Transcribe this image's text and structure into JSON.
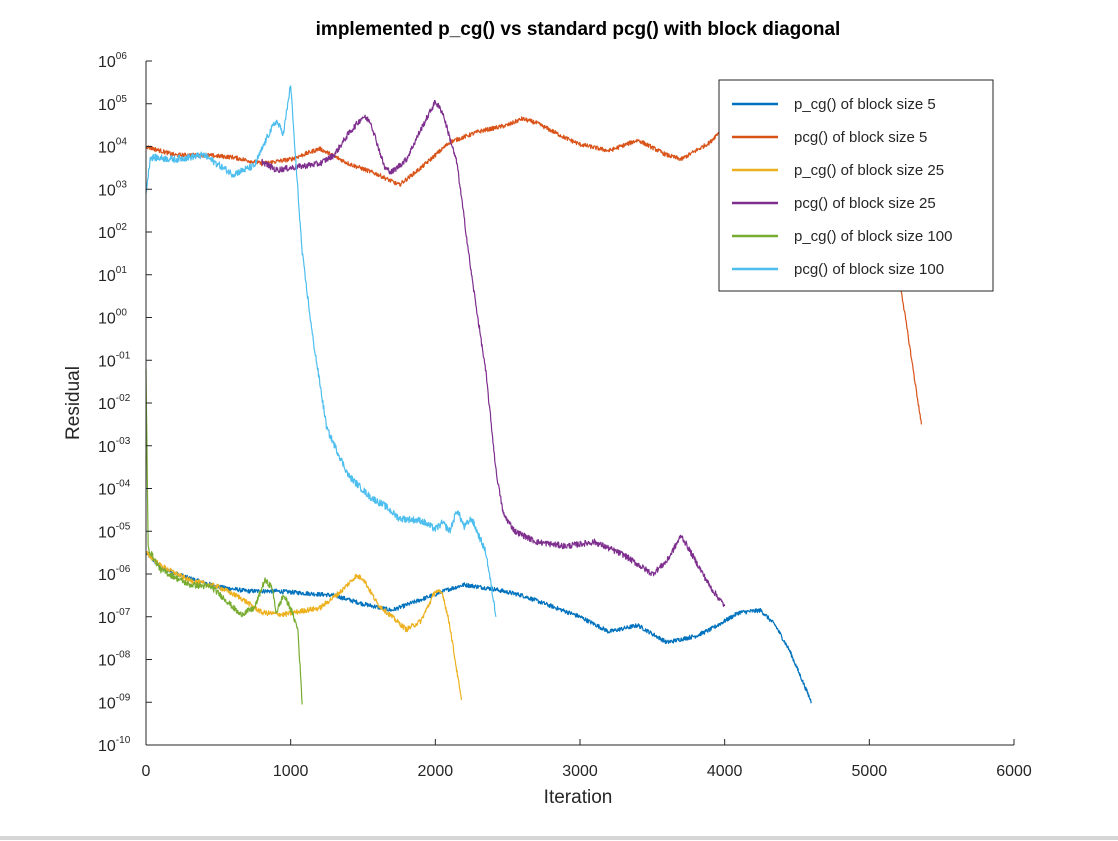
{
  "chart_data": {
    "type": "line",
    "yscale": "log",
    "title": "implemented p_cg() vs standard pcg() with block diagonal",
    "xlabel": "Iteration",
    "ylabel": "Residual",
    "xlim": [
      0,
      6000
    ],
    "ylim_exp": [
      -10,
      6
    ],
    "xticks": [
      "0",
      "1000",
      "2000",
      "3000",
      "4000",
      "5000",
      "6000"
    ],
    "yticks": [
      {
        "base": "10",
        "exp": "-10"
      },
      {
        "base": "10",
        "exp": "-09"
      },
      {
        "base": "10",
        "exp": "-08"
      },
      {
        "base": "10",
        "exp": "-07"
      },
      {
        "base": "10",
        "exp": "-06"
      },
      {
        "base": "10",
        "exp": "-05"
      },
      {
        "base": "10",
        "exp": "-04"
      },
      {
        "base": "10",
        "exp": "-03"
      },
      {
        "base": "10",
        "exp": "-02"
      },
      {
        "base": "10",
        "exp": "-01"
      },
      {
        "base": "10",
        "exp": "00"
      },
      {
        "base": "10",
        "exp": "01"
      },
      {
        "base": "10",
        "exp": "02"
      },
      {
        "base": "10",
        "exp": "03"
      },
      {
        "base": "10",
        "exp": "04"
      },
      {
        "base": "10",
        "exp": "05"
      },
      {
        "base": "10",
        "exp": "06"
      }
    ],
    "legend_position": "top-right",
    "series": [
      {
        "name": "p_cg() of block size 5",
        "color": "#0072BD",
        "noise": 0.05,
        "points": [
          [
            0,
            -5.5
          ],
          [
            100,
            -5.85
          ],
          [
            300,
            -6.1
          ],
          [
            500,
            -6.3
          ],
          [
            700,
            -6.4
          ],
          [
            900,
            -6.4
          ],
          [
            1100,
            -6.45
          ],
          [
            1300,
            -6.5
          ],
          [
            1500,
            -6.7
          ],
          [
            1700,
            -6.85
          ],
          [
            1900,
            -6.6
          ],
          [
            2100,
            -6.35
          ],
          [
            2200,
            -6.25
          ],
          [
            2400,
            -6.35
          ],
          [
            2600,
            -6.5
          ],
          [
            2800,
            -6.75
          ],
          [
            3000,
            -7.0
          ],
          [
            3200,
            -7.35
          ],
          [
            3400,
            -7.2
          ],
          [
            3600,
            -7.6
          ],
          [
            3800,
            -7.45
          ],
          [
            3900,
            -7.3
          ],
          [
            4100,
            -6.9
          ],
          [
            4250,
            -6.85
          ],
          [
            4350,
            -7.2
          ],
          [
            4450,
            -7.8
          ],
          [
            4600,
            -9.0
          ]
        ]
      },
      {
        "name": "pcg() of block size 5",
        "color": "#D95319",
        "noise": 0.05,
        "points": [
          [
            0,
            4.0
          ],
          [
            200,
            3.8
          ],
          [
            400,
            3.8
          ],
          [
            600,
            3.75
          ],
          [
            800,
            3.6
          ],
          [
            1000,
            3.7
          ],
          [
            1200,
            3.95
          ],
          [
            1400,
            3.6
          ],
          [
            1600,
            3.35
          ],
          [
            1750,
            3.1
          ],
          [
            1900,
            3.5
          ],
          [
            2100,
            4.1
          ],
          [
            2300,
            4.35
          ],
          [
            2500,
            4.5
          ],
          [
            2600,
            4.65
          ],
          [
            2700,
            4.55
          ],
          [
            2900,
            4.2
          ],
          [
            3000,
            4.05
          ],
          [
            3200,
            3.9
          ],
          [
            3400,
            4.15
          ],
          [
            3600,
            3.8
          ],
          [
            3700,
            3.7
          ],
          [
            3900,
            4.1
          ],
          [
            4000,
            4.5
          ],
          [
            4200,
            4.85
          ],
          [
            4400,
            4.7
          ],
          [
            4600,
            4.4
          ],
          [
            4800,
            3.8
          ],
          [
            5000,
            2.9
          ],
          [
            5200,
            1.1
          ],
          [
            5360,
            -2.5
          ]
        ]
      },
      {
        "name": "p_cg() of block size 25",
        "color": "#EDB120",
        "noise": 0.06,
        "points": [
          [
            0,
            -5.5
          ],
          [
            100,
            -5.8
          ],
          [
            300,
            -6.15
          ],
          [
            500,
            -6.3
          ],
          [
            650,
            -6.55
          ],
          [
            800,
            -6.9
          ],
          [
            950,
            -6.95
          ],
          [
            1100,
            -6.85
          ],
          [
            1200,
            -6.8
          ],
          [
            1350,
            -6.4
          ],
          [
            1450,
            -6.05
          ],
          [
            1500,
            -6.1
          ],
          [
            1600,
            -6.7
          ],
          [
            1700,
            -7.0
          ],
          [
            1800,
            -7.3
          ],
          [
            1900,
            -7.1
          ],
          [
            2000,
            -6.4
          ],
          [
            2050,
            -6.45
          ],
          [
            2100,
            -7.2
          ],
          [
            2150,
            -8.3
          ],
          [
            2180,
            -8.95
          ]
        ]
      },
      {
        "name": "pcg() of block size 25",
        "color": "#7E2F8E",
        "noise": 0.07,
        "points": [
          [
            800,
            3.65
          ],
          [
            900,
            3.45
          ],
          [
            1000,
            3.5
          ],
          [
            1100,
            3.55
          ],
          [
            1200,
            3.6
          ],
          [
            1300,
            3.8
          ],
          [
            1400,
            4.3
          ],
          [
            1500,
            4.7
          ],
          [
            1550,
            4.6
          ],
          [
            1650,
            3.5
          ],
          [
            1700,
            3.4
          ],
          [
            1800,
            3.7
          ],
          [
            1900,
            4.4
          ],
          [
            2000,
            5.05
          ],
          [
            2050,
            4.8
          ],
          [
            2150,
            3.6
          ],
          [
            2250,
            1.0
          ],
          [
            2350,
            -1.3
          ],
          [
            2420,
            -3.6
          ],
          [
            2470,
            -4.6
          ],
          [
            2550,
            -5.0
          ],
          [
            2700,
            -5.25
          ],
          [
            2900,
            -5.35
          ],
          [
            3100,
            -5.25
          ],
          [
            3300,
            -5.55
          ],
          [
            3500,
            -6.0
          ],
          [
            3600,
            -5.7
          ],
          [
            3700,
            -5.1
          ],
          [
            3800,
            -5.7
          ],
          [
            3900,
            -6.3
          ],
          [
            4000,
            -6.75
          ]
        ]
      },
      {
        "name": "p_cg() of block size 100",
        "color": "#77AC30",
        "noise": 0.07,
        "points": [
          [
            0,
            -1.2
          ],
          [
            15,
            -5.4
          ],
          [
            100,
            -5.9
          ],
          [
            300,
            -6.25
          ],
          [
            450,
            -6.3
          ],
          [
            550,
            -6.6
          ],
          [
            650,
            -6.95
          ],
          [
            750,
            -6.8
          ],
          [
            820,
            -6.15
          ],
          [
            870,
            -6.3
          ],
          [
            900,
            -6.9
          ],
          [
            950,
            -6.5
          ],
          [
            1000,
            -6.8
          ],
          [
            1050,
            -7.3
          ],
          [
            1080,
            -9.05
          ]
        ]
      },
      {
        "name": "pcg() of block size 100",
        "color": "#4DBEEE",
        "noise": 0.08,
        "points": [
          [
            0,
            2.9
          ],
          [
            30,
            3.75
          ],
          [
            200,
            3.7
          ],
          [
            400,
            3.8
          ],
          [
            600,
            3.35
          ],
          [
            750,
            3.55
          ],
          [
            850,
            4.3
          ],
          [
            900,
            4.6
          ],
          [
            950,
            4.3
          ],
          [
            1000,
            5.45
          ],
          [
            1030,
            3.9
          ],
          [
            1080,
            1.5
          ],
          [
            1150,
            -0.4
          ],
          [
            1250,
            -2.6
          ],
          [
            1400,
            -3.7
          ],
          [
            1550,
            -4.2
          ],
          [
            1650,
            -4.4
          ],
          [
            1750,
            -4.7
          ],
          [
            1900,
            -4.75
          ],
          [
            2000,
            -4.95
          ],
          [
            2050,
            -4.8
          ],
          [
            2100,
            -5.0
          ],
          [
            2150,
            -4.5
          ],
          [
            2200,
            -4.9
          ],
          [
            2250,
            -4.7
          ],
          [
            2300,
            -5.1
          ],
          [
            2350,
            -5.5
          ],
          [
            2420,
            -7.0
          ]
        ]
      }
    ]
  }
}
